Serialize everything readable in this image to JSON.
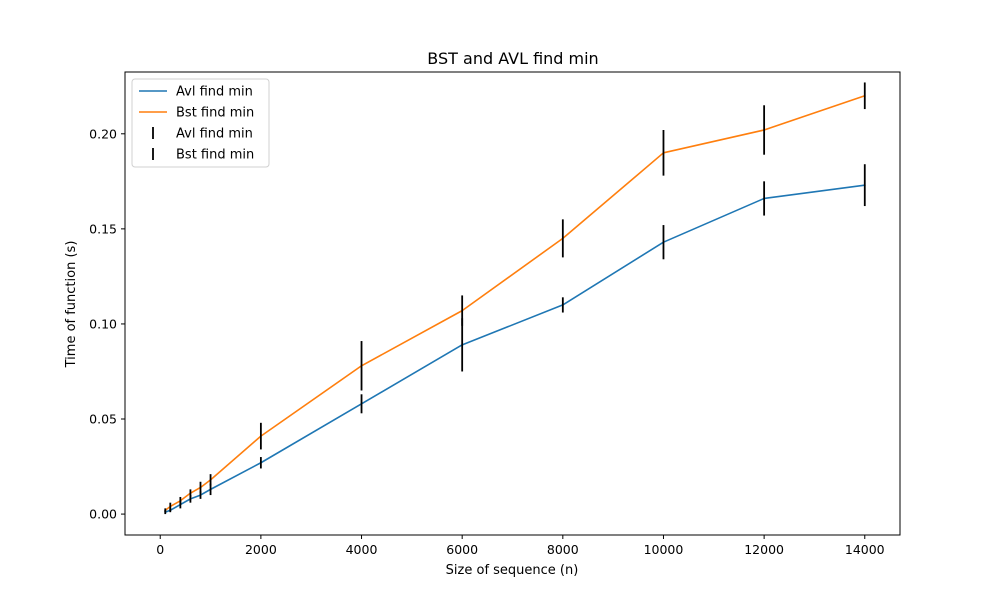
{
  "chart_data": {
    "type": "line",
    "title": "BST and AVL find min",
    "xlabel": "Size of sequence (n)",
    "ylabel": "Time of function (s)",
    "xlim": [
      -700,
      14700
    ],
    "ylim": [
      -0.011,
      0.2325
    ],
    "xticks": [
      0,
      2000,
      4000,
      6000,
      8000,
      10000,
      12000,
      14000
    ],
    "yticks": [
      0.0,
      0.05,
      0.1,
      0.15,
      0.2
    ],
    "xtick_labels": [
      "0",
      "2000",
      "4000",
      "6000",
      "8000",
      "10000",
      "12000",
      "14000"
    ],
    "ytick_labels": [
      "0.00",
      "0.05",
      "0.10",
      "0.15",
      "0.20"
    ],
    "grid": false,
    "legend_position": "top-left",
    "x": [
      100,
      200,
      400,
      600,
      800,
      1000,
      2000,
      4000,
      6000,
      8000,
      10000,
      12000,
      14000
    ],
    "series": [
      {
        "name": "Avl find min",
        "color": "#1f77b4",
        "values": [
          0.001,
          0.002,
          0.005,
          0.008,
          0.01,
          0.013,
          0.027,
          0.058,
          0.089,
          0.11,
          0.143,
          0.166,
          0.173
        ],
        "errors": [
          0.001,
          0.001,
          0.002,
          0.002,
          0.002,
          0.003,
          0.003,
          0.005,
          0.014,
          0.004,
          0.009,
          0.009,
          0.011
        ]
      },
      {
        "name": "Bst find min",
        "color": "#ff7f0e",
        "values": [
          0.002,
          0.004,
          0.007,
          0.011,
          0.014,
          0.018,
          0.041,
          0.078,
          0.107,
          0.145,
          0.19,
          0.202,
          0.22
        ],
        "errors": [
          0.001,
          0.002,
          0.002,
          0.002,
          0.003,
          0.003,
          0.007,
          0.013,
          0.008,
          0.01,
          0.012,
          0.013,
          0.007
        ]
      }
    ],
    "legend": [
      {
        "label": "Avl find min",
        "kind": "line",
        "color": "#1f77b4"
      },
      {
        "label": "Bst find min",
        "kind": "line",
        "color": "#ff7f0e"
      },
      {
        "label": "Avl find min",
        "kind": "errorbar",
        "color": "#000000"
      },
      {
        "label": "Bst find min",
        "kind": "errorbar",
        "color": "#000000"
      }
    ]
  }
}
